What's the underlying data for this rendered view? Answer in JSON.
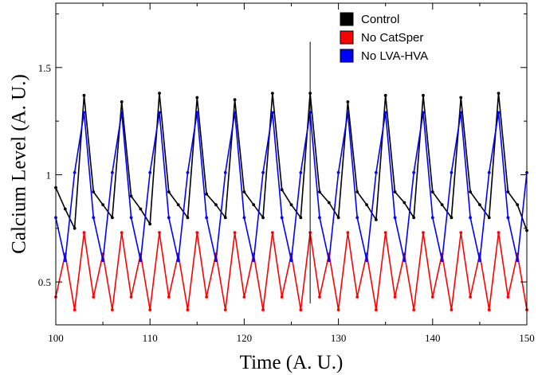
{
  "chart_data": {
    "type": "line",
    "title": "",
    "xlabel": "Time (A. U.)",
    "ylabel": "Calcium Level (A. U.)",
    "xlim": [
      100,
      150
    ],
    "ylim": [
      0.3,
      1.8
    ],
    "x_ticks": [
      100,
      110,
      120,
      130,
      140,
      150
    ],
    "x_tick_labels": [
      "100",
      "110",
      "120",
      "130",
      "140",
      "150"
    ],
    "y_ticks": [
      0.5,
      1.0,
      1.5
    ],
    "y_tick_labels": [
      "0.5",
      "1",
      "1.5"
    ],
    "grid": false,
    "legend_position": "top-right",
    "annotation_vline_x": 127,
    "series": [
      {
        "name": "Control",
        "color": "#000000",
        "x": [
          100,
          101,
          102,
          103,
          104,
          105,
          106,
          107,
          108,
          109,
          110,
          111,
          112,
          113,
          114,
          115,
          116,
          117,
          118,
          119,
          120,
          121,
          122,
          123,
          124,
          125,
          126,
          127,
          128,
          129,
          130,
          131,
          132,
          133,
          134,
          135,
          136,
          137,
          138,
          139,
          140,
          141,
          142,
          143,
          144,
          145,
          146,
          147,
          148,
          149,
          150
        ],
        "y": [
          0.94,
          0.84,
          0.75,
          1.37,
          0.92,
          0.86,
          0.8,
          1.34,
          0.9,
          0.84,
          0.77,
          1.38,
          0.92,
          0.86,
          0.8,
          1.36,
          0.91,
          0.86,
          0.8,
          1.35,
          0.92,
          0.86,
          0.8,
          1.38,
          0.93,
          0.86,
          0.8,
          1.38,
          0.92,
          0.87,
          0.8,
          1.34,
          0.92,
          0.86,
          0.79,
          1.37,
          0.92,
          0.87,
          0.8,
          1.37,
          0.92,
          0.86,
          0.8,
          1.36,
          0.92,
          0.86,
          0.8,
          1.38,
          0.92,
          0.86,
          0.74
        ]
      },
      {
        "name": "No CatSper",
        "color": "#ff0000",
        "x": [
          100,
          101,
          102,
          103,
          104,
          105,
          106,
          107,
          108,
          109,
          110,
          111,
          112,
          113,
          114,
          115,
          116,
          117,
          118,
          119,
          120,
          121,
          122,
          123,
          124,
          125,
          126,
          127,
          128,
          129,
          130,
          131,
          132,
          133,
          134,
          135,
          136,
          137,
          138,
          139,
          140,
          141,
          142,
          143,
          144,
          145,
          146,
          147,
          148,
          149,
          150
        ],
        "y": [
          0.43,
          0.63,
          0.37,
          0.73,
          0.43,
          0.63,
          0.37,
          0.73,
          0.43,
          0.63,
          0.37,
          0.73,
          0.43,
          0.63,
          0.37,
          0.73,
          0.43,
          0.63,
          0.37,
          0.73,
          0.43,
          0.63,
          0.37,
          0.73,
          0.43,
          0.63,
          0.37,
          0.73,
          0.43,
          0.63,
          0.37,
          0.73,
          0.43,
          0.63,
          0.37,
          0.73,
          0.43,
          0.63,
          0.37,
          0.73,
          0.43,
          0.63,
          0.37,
          0.73,
          0.43,
          0.63,
          0.37,
          0.73,
          0.43,
          0.63,
          0.37
        ]
      },
      {
        "name": "No LVA-HVA",
        "color": "#0000ff",
        "x": [
          100,
          101,
          102,
          103,
          104,
          105,
          106,
          107,
          108,
          109,
          110,
          111,
          112,
          113,
          114,
          115,
          116,
          117,
          118,
          119,
          120,
          121,
          122,
          123,
          124,
          125,
          126,
          127,
          128,
          129,
          130,
          131,
          132,
          133,
          134,
          135,
          136,
          137,
          138,
          139,
          140,
          141,
          142,
          143,
          144,
          145,
          146,
          147,
          148,
          149,
          150
        ],
        "y": [
          0.8,
          0.6,
          1.01,
          1.29,
          0.8,
          0.6,
          1.01,
          1.29,
          0.8,
          0.6,
          1.01,
          1.29,
          0.8,
          0.6,
          1.01,
          1.29,
          0.8,
          0.6,
          1.01,
          1.29,
          0.8,
          0.6,
          1.01,
          1.29,
          0.8,
          0.6,
          1.01,
          1.29,
          0.8,
          0.6,
          1.01,
          1.29,
          0.8,
          0.6,
          1.01,
          1.29,
          0.8,
          0.6,
          1.01,
          1.29,
          0.8,
          0.6,
          1.01,
          1.29,
          0.8,
          0.6,
          1.01,
          1.29,
          0.8,
          0.6,
          1.01
        ]
      }
    ]
  }
}
